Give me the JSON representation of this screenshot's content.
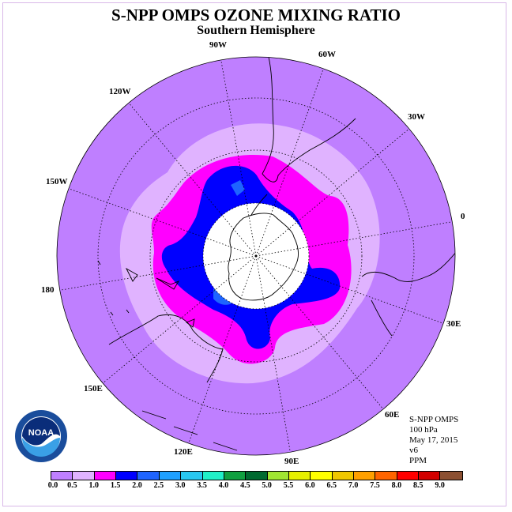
{
  "title": "S-NPP OMPS OZONE MIXING RATIO",
  "subtitle": "Southern Hemisphere",
  "longitude_labels": [
    "90W",
    "60W",
    "30W",
    "0",
    "30E",
    "60E",
    "90E",
    "120E",
    "150E",
    "180",
    "150W",
    "120W"
  ],
  "info": {
    "instrument": "S-NPP OMPS",
    "level": "100 hPa",
    "date": "May 17, 2015",
    "version": "v6",
    "unit": "PPM"
  },
  "logo_text": "NOAA",
  "colorbar": {
    "ticks": [
      "0.0",
      "0.5",
      "1.0",
      "1.5",
      "2.0",
      "2.5",
      "3.0",
      "3.5",
      "4.0",
      "4.5",
      "5.0",
      "5.5",
      "6.0",
      "6.5",
      "7.0",
      "7.5",
      "8.0",
      "8.5",
      "9.0"
    ],
    "colors": [
      "#bf7fff",
      "#e0b3ff",
      "#ff00ff",
      "#0000ff",
      "#1e64ff",
      "#1ea0ff",
      "#28c8f0",
      "#20f0c8",
      "#10a040",
      "#006a30",
      "#a0e632",
      "#e6f000",
      "#ffff00",
      "#f0c800",
      "#ffa000",
      "#ff6400",
      "#ff0000",
      "#d20000",
      "#8c5032"
    ]
  },
  "colors": {
    "background": "#bf7fff",
    "band_light": "#e0b3ff",
    "band_magenta": "#ff00ff",
    "band_blue": "#0000ff",
    "band_lightblue": "#1e64ff",
    "polar_hole": "#ffffff"
  }
}
